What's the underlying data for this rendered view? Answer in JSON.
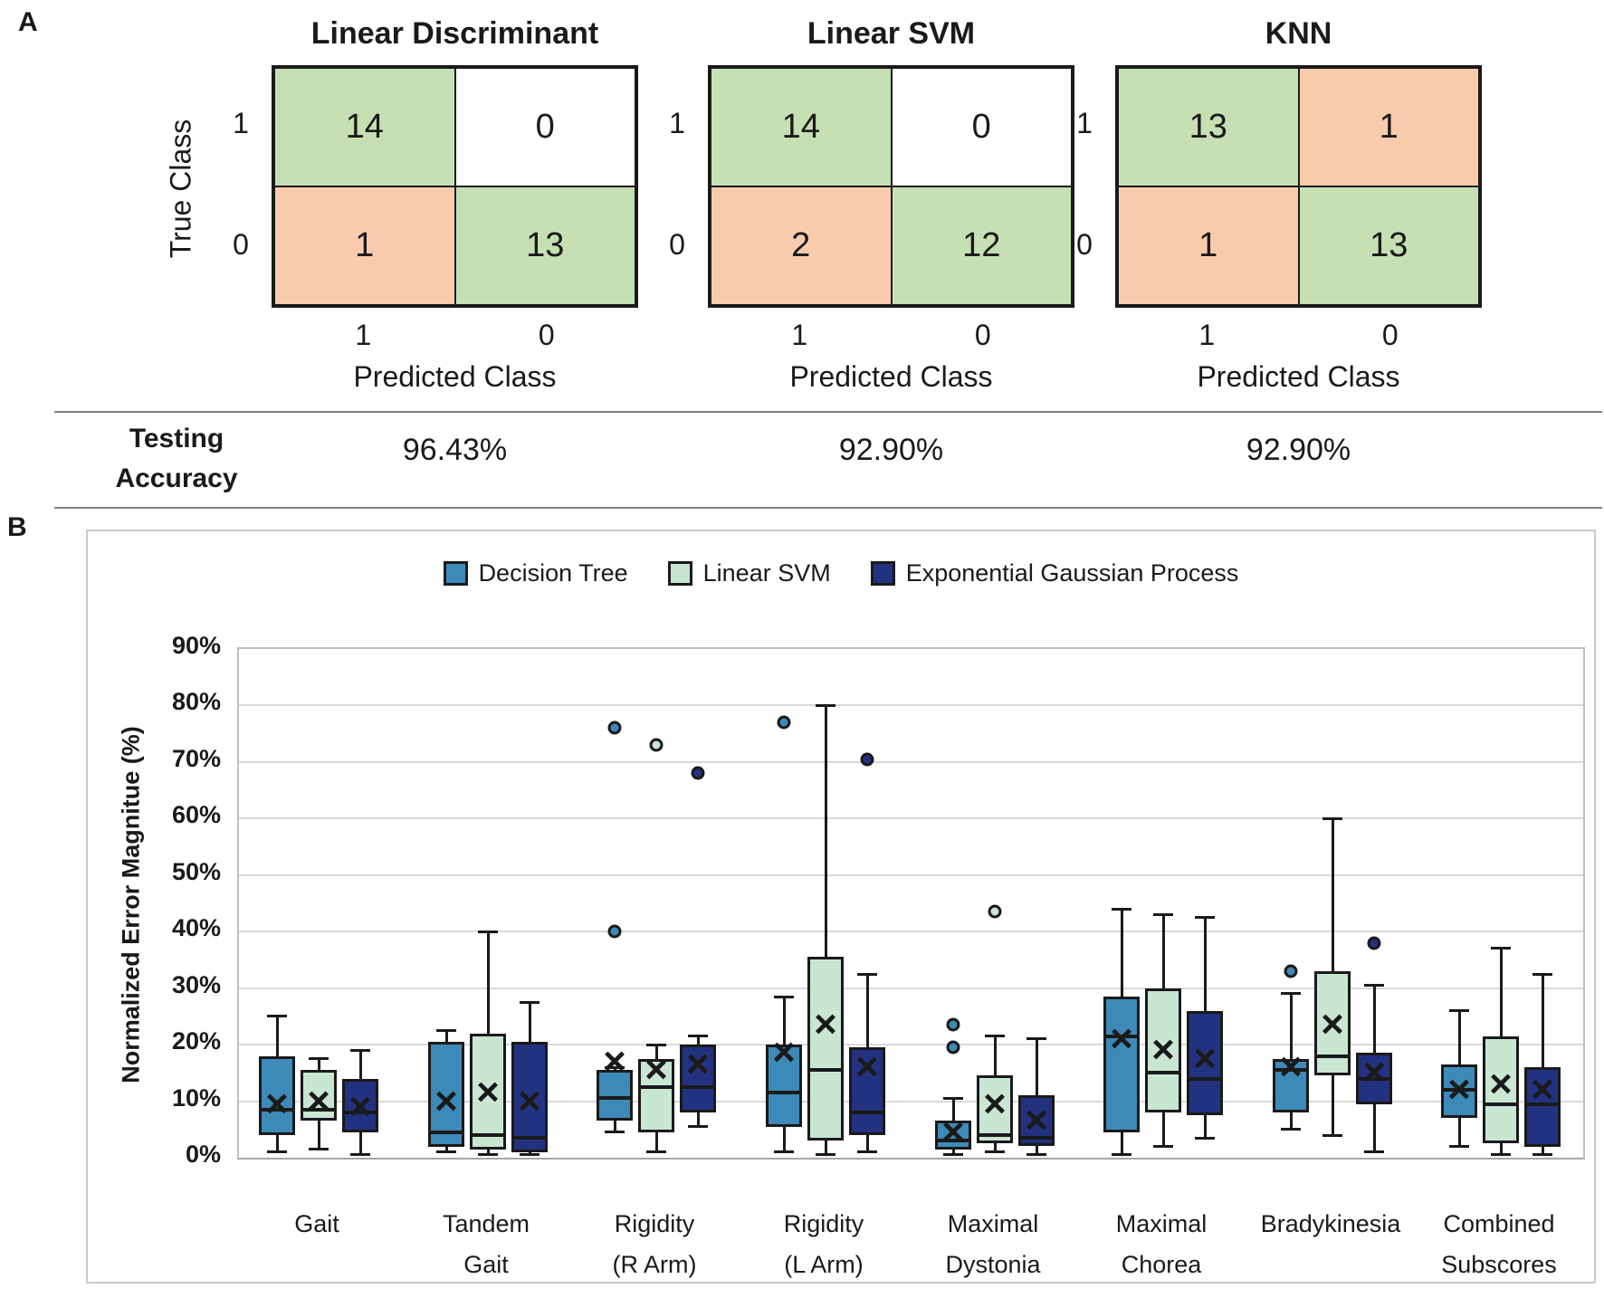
{
  "colors": {
    "matrix_green": "#c6e0b4",
    "matrix_orange": "#f8cbad",
    "white": "#ffffff",
    "decision_tree": "#3d8ab8",
    "linear_svm": "#c8e6d2",
    "egp": "#233280",
    "gridline": "#d9d9d9",
    "box_border": "#1a1a1a"
  },
  "panel_a": {
    "label": "A",
    "row_axis_label": "True Class",
    "col_axis_label": "Predicted Class",
    "row_tick_labels": [
      "1",
      "0"
    ],
    "col_tick_labels": [
      "1",
      "0"
    ],
    "accuracy_label_line1": "Testing",
    "accuracy_label_line2": "Accuracy",
    "matrices": [
      {
        "title": "Linear Discriminant",
        "accuracy": "96.43%",
        "cells": [
          [
            {
              "value": "14",
              "bg": "green"
            },
            {
              "value": "0",
              "bg": "white"
            }
          ],
          [
            {
              "value": "1",
              "bg": "orange"
            },
            {
              "value": "13",
              "bg": "green"
            }
          ]
        ]
      },
      {
        "title": "Linear SVM",
        "accuracy": "92.90%",
        "cells": [
          [
            {
              "value": "14",
              "bg": "green"
            },
            {
              "value": "0",
              "bg": "white"
            }
          ],
          [
            {
              "value": "2",
              "bg": "orange"
            },
            {
              "value": "12",
              "bg": "green"
            }
          ]
        ]
      },
      {
        "title": "KNN",
        "accuracy": "92.90%",
        "cells": [
          [
            {
              "value": "13",
              "bg": "green"
            },
            {
              "value": "1",
              "bg": "orange"
            }
          ],
          [
            {
              "value": "1",
              "bg": "orange"
            },
            {
              "value": "13",
              "bg": "green"
            }
          ]
        ]
      }
    ]
  },
  "panel_b": {
    "label": "B",
    "chart_data": {
      "type": "boxplot",
      "ylabel": "Normalized Error Magnitue (%)",
      "ylim": [
        0,
        90
      ],
      "ytick_step": 10,
      "ytick_suffix": "%",
      "grid": true,
      "legend_position": "top-center",
      "categories": [
        [
          "Gait"
        ],
        [
          "Tandem",
          "Gait"
        ],
        [
          "Rigidity",
          "(R Arm)"
        ],
        [
          "Rigidity",
          "(L Arm)"
        ],
        [
          "Maximal",
          "Dystonia"
        ],
        [
          "Maximal",
          "Chorea"
        ],
        [
          "Bradykinesia"
        ],
        [
          "Combined",
          "Subscores"
        ]
      ],
      "series": [
        {
          "name": "Decision Tree",
          "color_key": "decision_tree",
          "boxes": [
            {
              "low": 1,
              "q1": 4,
              "median": 8.5,
              "q3": 18,
              "high": 25,
              "mean": 9.5,
              "outliers": []
            },
            {
              "low": 1,
              "q1": 2,
              "median": 4.5,
              "q3": 20.5,
              "high": 22.5,
              "mean": 10,
              "outliers": []
            },
            {
              "low": 4.5,
              "q1": 6.5,
              "median": 10.5,
              "q3": 15.5,
              "high": 16,
              "mean": 17,
              "outliers": [
                40,
                76
              ]
            },
            {
              "low": 1,
              "q1": 5.5,
              "median": 11.5,
              "q3": 20,
              "high": 28.5,
              "mean": 18.5,
              "outliers": [
                77
              ]
            },
            {
              "low": 0.5,
              "q1": 1.5,
              "median": 3,
              "q3": 6.5,
              "high": 10.5,
              "mean": 4.5,
              "outliers": [
                19.5,
                23.5
              ]
            },
            {
              "low": 0.5,
              "q1": 4.5,
              "median": 21.5,
              "q3": 28.5,
              "high": 44,
              "mean": 21,
              "outliers": []
            },
            {
              "low": 5,
              "q1": 8,
              "median": 15.5,
              "q3": 17.5,
              "high": 29,
              "mean": 16,
              "outliers": [
                33
              ]
            },
            {
              "low": 2,
              "q1": 7,
              "median": 12,
              "q3": 16.5,
              "high": 26,
              "mean": 12,
              "outliers": []
            }
          ]
        },
        {
          "name": "Linear SVM",
          "color_key": "linear_svm",
          "boxes": [
            {
              "low": 1.5,
              "q1": 6.5,
              "median": 8.5,
              "q3": 15.5,
              "high": 17.5,
              "mean": 10,
              "outliers": []
            },
            {
              "low": 0.5,
              "q1": 1.5,
              "median": 4,
              "q3": 22,
              "high": 40,
              "mean": 11.5,
              "outliers": []
            },
            {
              "low": 1,
              "q1": 4.5,
              "median": 12.5,
              "q3": 17.5,
              "high": 20,
              "mean": 15.5,
              "outliers": [
                73
              ]
            },
            {
              "low": 0.5,
              "q1": 3,
              "median": 15.5,
              "q3": 35.5,
              "high": 80,
              "mean": 23.5,
              "outliers": []
            },
            {
              "low": 1,
              "q1": 2.5,
              "median": 4,
              "q3": 14.5,
              "high": 21.5,
              "mean": 9.5,
              "outliers": [
                43.5
              ]
            },
            {
              "low": 2,
              "q1": 8,
              "median": 15,
              "q3": 30,
              "high": 43,
              "mean": 19,
              "outliers": []
            },
            {
              "low": 4,
              "q1": 14.5,
              "median": 18,
              "q3": 33,
              "high": 60,
              "mean": 23.5,
              "outliers": []
            },
            {
              "low": 0.5,
              "q1": 2.5,
              "median": 9.5,
              "q3": 21.5,
              "high": 37,
              "mean": 13,
              "outliers": []
            }
          ]
        },
        {
          "name": "Exponential Gaussian Process",
          "color_key": "egp",
          "boxes": [
            {
              "low": 0.5,
              "q1": 4.5,
              "median": 8,
              "q3": 14,
              "high": 19,
              "mean": 9,
              "outliers": []
            },
            {
              "low": 0.5,
              "q1": 1,
              "median": 3.5,
              "q3": 20.5,
              "high": 27.5,
              "mean": 10,
              "outliers": []
            },
            {
              "low": 5.5,
              "q1": 8,
              "median": 12.5,
              "q3": 20,
              "high": 21.5,
              "mean": 16.5,
              "outliers": [
                68
              ]
            },
            {
              "low": 1,
              "q1": 4,
              "median": 8,
              "q3": 19.5,
              "high": 32.5,
              "mean": 16,
              "outliers": [
                70.5
              ]
            },
            {
              "low": 0.5,
              "q1": 2,
              "median": 3.5,
              "q3": 11,
              "high": 21,
              "mean": 6.5,
              "outliers": []
            },
            {
              "low": 3.5,
              "q1": 7.5,
              "median": 14,
              "q3": 26,
              "high": 42.5,
              "mean": 17.5,
              "outliers": []
            },
            {
              "low": 1,
              "q1": 9.5,
              "median": 14,
              "q3": 18.5,
              "high": 30.5,
              "mean": 15,
              "outliers": [
                38
              ]
            },
            {
              "low": 0.5,
              "q1": 2,
              "median": 9.5,
              "q3": 16,
              "high": 32.5,
              "mean": 12,
              "outliers": []
            }
          ]
        }
      ]
    }
  }
}
